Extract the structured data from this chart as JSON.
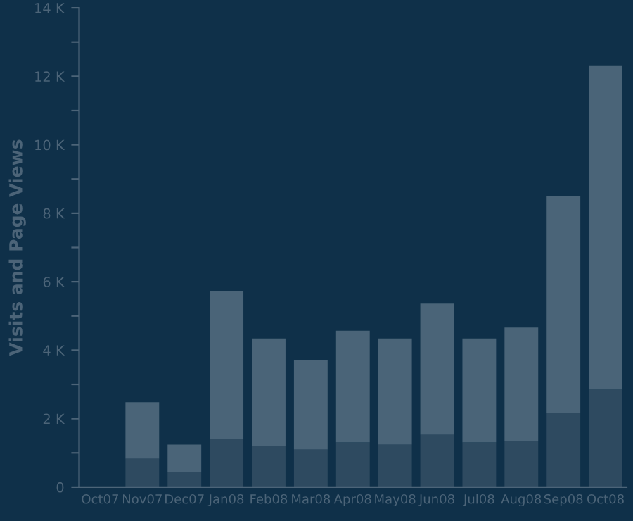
{
  "chart_data": {
    "type": "bar",
    "stacked": true,
    "ylabel": "Visits and Page Views",
    "categories": [
      "Oct07",
      "Nov07",
      "Dec07",
      "Jan08",
      "Feb08",
      "Mar08",
      "Apr08",
      "May08",
      "Jun08",
      "Jul08",
      "Aug08",
      "Sep08",
      "Oct08"
    ],
    "series": [
      {
        "color": "#2e4a60",
        "values": [
          0,
          0.83,
          0.45,
          1.4,
          1.2,
          1.1,
          1.31,
          1.24,
          1.53,
          1.31,
          1.35,
          2.18,
          2.85
        ]
      },
      {
        "color": "#4a6478",
        "values": [
          0,
          1.65,
          0.79,
          4.33,
          3.14,
          2.61,
          3.26,
          3.1,
          3.83,
          3.03,
          3.31,
          6.32,
          9.45
        ]
      }
    ],
    "ylim": [
      0,
      14
    ],
    "yticks": [
      {
        "value": 0,
        "label": "0"
      },
      {
        "value": 1,
        "label": null
      },
      {
        "value": 2,
        "label": "2 K"
      },
      {
        "value": 3,
        "label": null
      },
      {
        "value": 4,
        "label": "4 K"
      },
      {
        "value": 5,
        "label": null
      },
      {
        "value": 6,
        "label": "6 K"
      },
      {
        "value": 7,
        "label": null
      },
      {
        "value": 8,
        "label": "8 K"
      },
      {
        "value": 9,
        "label": null
      },
      {
        "value": 10,
        "label": "10 K"
      },
      {
        "value": 11,
        "label": null
      },
      {
        "value": 12,
        "label": "12 K"
      },
      {
        "value": 13,
        "label": null
      },
      {
        "value": 14,
        "label": "14 K"
      }
    ],
    "grid": false,
    "legend": false
  }
}
